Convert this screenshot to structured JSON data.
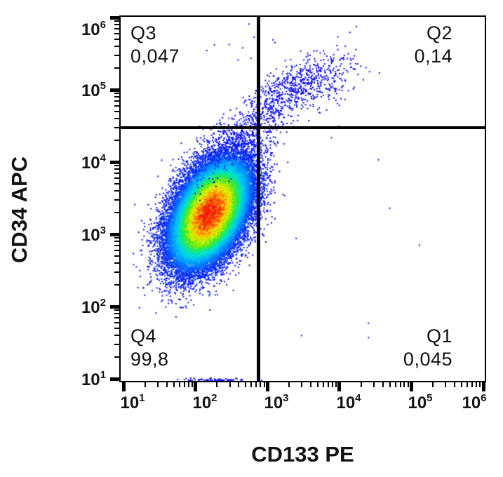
{
  "figure": {
    "background": "#ffffff",
    "border_color": "#000000"
  },
  "chart_data": {
    "type": "scatter",
    "subtype": "flow-cytometry-density-dot-plot",
    "title": "",
    "x_axis": {
      "label": "CD133 PE",
      "scale": "log",
      "range": [
        9,
        1000000
      ],
      "decades": [
        1,
        2,
        3,
        4,
        5,
        6
      ],
      "tick_format": "10^n"
    },
    "y_axis": {
      "label": "CD34 APC",
      "scale": "log",
      "range": [
        9,
        1000000
      ],
      "decades": [
        1,
        2,
        3,
        4,
        5,
        6
      ],
      "tick_format": "10^n"
    },
    "gates": {
      "x_value": 750,
      "y_value": 30000,
      "line_color": "#000000"
    },
    "quadrants": {
      "q3": {
        "name": "Q3",
        "value": "0,047",
        "corner": "top-left"
      },
      "q2": {
        "name": "Q2",
        "value": "0,14",
        "corner": "top-right"
      },
      "q4": {
        "name": "Q4",
        "value": "99,8",
        "corner": "bottom-left"
      },
      "q1": {
        "name": "Q1",
        "value": "0,045",
        "corner": "bottom-right"
      }
    },
    "dot_color": "#0d0df2",
    "density_colormap": [
      [
        0.0,
        "#0d0df2"
      ],
      [
        0.2,
        "#0030ff"
      ],
      [
        0.35,
        "#00a8ff"
      ],
      [
        0.48,
        "#00e8d0"
      ],
      [
        0.58,
        "#30e830"
      ],
      [
        0.68,
        "#a0f000"
      ],
      [
        0.76,
        "#f8f000"
      ],
      [
        0.85,
        "#ffa000"
      ],
      [
        0.92,
        "#ff5000"
      ],
      [
        1.0,
        "#f01010"
      ]
    ],
    "populations": [
      {
        "name": "main-CD34pos-CD133neg",
        "n": 42000,
        "cx": 2.19,
        "cy": 3.3,
        "sx": 0.27,
        "sy": 0.36,
        "rho": 0.45,
        "density_colored": true
      },
      {
        "name": "bridge-trail",
        "n": 650,
        "cx": 2.8,
        "cy": 4.55,
        "sx": 0.42,
        "sy": 0.38,
        "rho": 0.82,
        "density_colored": false
      },
      {
        "name": "upper-cluster-CD133pos",
        "n": 520,
        "cx": 3.52,
        "cy": 5.08,
        "sx": 0.34,
        "sy": 0.22,
        "rho": 0.5,
        "density_colored": false
      },
      {
        "name": "floor-pileup",
        "n": 70,
        "cx": 2.25,
        "cy": 0.99,
        "sx": 0.22,
        "sy": 0.02,
        "rho": 0.0,
        "density_colored": false
      },
      {
        "name": "top-strays",
        "n": 10,
        "cx": 2.6,
        "cy": 5.7,
        "sx": 0.28,
        "sy": 0.18,
        "rho": 0.0,
        "density_colored": false
      },
      {
        "name": "sparse-noise",
        "n": 10,
        "cx": 3.6,
        "cy": 2.8,
        "sx": 1.0,
        "sy": 0.9,
        "rho": 0.0,
        "density_colored": false
      }
    ]
  }
}
